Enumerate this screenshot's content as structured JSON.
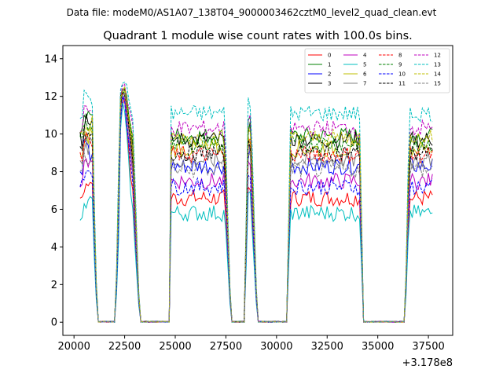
{
  "suptitle": "Data file: modeM0/AS1A07_138T04_9000003462cztM0_level2_quad_clean.evt",
  "chart_data": {
    "type": "line",
    "title": "Quadrant 1 module wise count rates with 100.0s bins.",
    "xlabel": "",
    "ylabel": "",
    "offset_text": "+3.178e8",
    "xlim": [
      19450,
      38700
    ],
    "ylim": [
      -0.7,
      14.7
    ],
    "xticks": [
      20000,
      22500,
      25000,
      27500,
      30000,
      32500,
      35000,
      37500
    ],
    "yticks": [
      0,
      2,
      4,
      6,
      8,
      10,
      12,
      14
    ],
    "grid": false,
    "legend_position": "top-right",
    "time_profile": {
      "segments": [
        {
          "start": 20300,
          "end": 20900
        },
        {
          "start": 22250,
          "end": 22900
        },
        {
          "start": 24800,
          "end": 27450
        },
        {
          "start": 28550,
          "end": 28750
        },
        {
          "start": 30650,
          "end": 34150
        },
        {
          "start": 36550,
          "end": 37750
        }
      ],
      "gaps": [
        {
          "start": 21150,
          "end": 22050
        },
        {
          "start": 23250,
          "end": 24750
        },
        {
          "start": 27750,
          "end": 28450
        },
        {
          "start": 29050,
          "end": 30550
        },
        {
          "start": 34250,
          "end": 36350
        }
      ],
      "flare_center": 22450,
      "flare_value": 12.6
    },
    "series": [
      {
        "name": "0",
        "color": "#ff0000",
        "dash": false,
        "level": 6.6
      },
      {
        "name": "1",
        "color": "#008000",
        "dash": false,
        "level": 9.9
      },
      {
        "name": "2",
        "color": "#0000ff",
        "dash": false,
        "level": 8.3
      },
      {
        "name": "3",
        "color": "#000000",
        "dash": false,
        "level": 9.7
      },
      {
        "name": "4",
        "color": "#bf00bf",
        "dash": false,
        "level": 7.5
      },
      {
        "name": "5",
        "color": "#00bfbf",
        "dash": false,
        "level": 5.8
      },
      {
        "name": "6",
        "color": "#bfbf00",
        "dash": false,
        "level": 9.2
      },
      {
        "name": "7",
        "color": "#808080",
        "dash": false,
        "level": 8.6
      },
      {
        "name": "8",
        "color": "#ff0000",
        "dash": true,
        "level": 8.9
      },
      {
        "name": "9",
        "color": "#008000",
        "dash": true,
        "level": 9.5
      },
      {
        "name": "10",
        "color": "#0000ff",
        "dash": true,
        "level": 7.2
      },
      {
        "name": "11",
        "color": "#000000",
        "dash": true,
        "level": 9.0
      },
      {
        "name": "12",
        "color": "#bf00bf",
        "dash": true,
        "level": 10.3
      },
      {
        "name": "13",
        "color": "#00bfbf",
        "dash": true,
        "level": 11.1
      },
      {
        "name": "14",
        "color": "#bfbf00",
        "dash": true,
        "level": 9.8
      },
      {
        "name": "15",
        "color": "#808080",
        "dash": true,
        "level": 8.1
      }
    ]
  }
}
